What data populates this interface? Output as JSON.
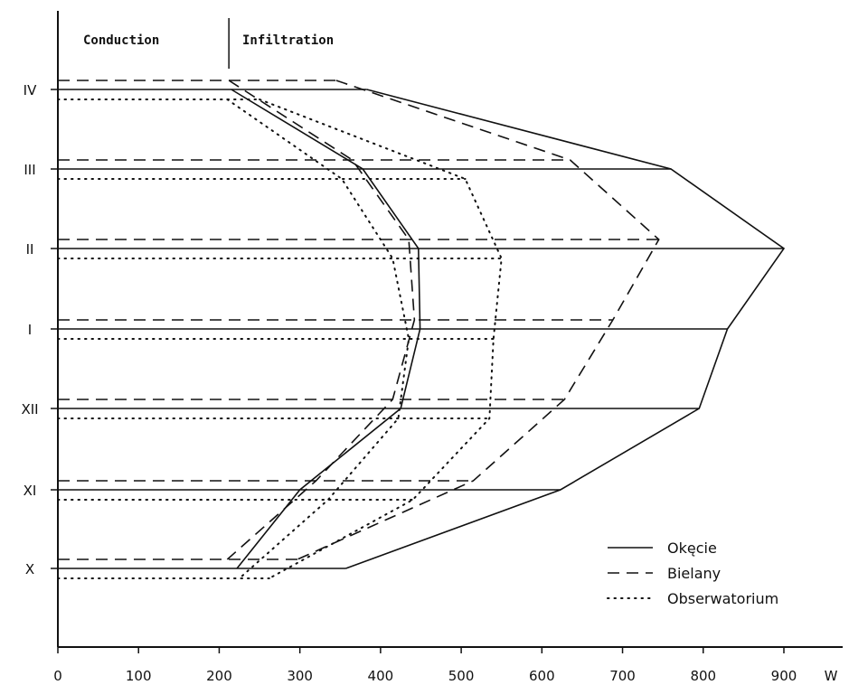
{
  "chart_data": {
    "type": "line",
    "header_labels": {
      "left": "Conduction",
      "right": "Infiltration"
    },
    "x_axis": {
      "min": 0,
      "max": 900,
      "ticks": [
        0,
        100,
        200,
        300,
        400,
        500,
        600,
        700,
        800,
        900
      ],
      "unit": "W"
    },
    "months": [
      "IV",
      "III",
      "II",
      "I",
      "XII",
      "XI",
      "X"
    ],
    "conduction_infiltration_divider": 212,
    "series": [
      {
        "name": "Okęcie",
        "style": "solid",
        "conduction": [
          215,
          378,
          447,
          449,
          425,
          300,
          222
        ],
        "total": [
          383,
          760,
          900,
          830,
          795,
          623,
          357
        ]
      },
      {
        "name": "Bielany",
        "style": "dashed",
        "conduction": [
          212,
          365,
          435,
          442,
          415,
          320,
          210
        ],
        "total": [
          345,
          635,
          745,
          688,
          628,
          515,
          297
        ]
      },
      {
        "name": "Obserwatorium",
        "style": "dotted",
        "conduction": [
          210,
          352,
          415,
          435,
          422,
          335,
          225
        ],
        "total": [
          250,
          505,
          550,
          540,
          535,
          440,
          262
        ]
      }
    ],
    "legend_position": "bottom-right",
    "grid": false
  }
}
